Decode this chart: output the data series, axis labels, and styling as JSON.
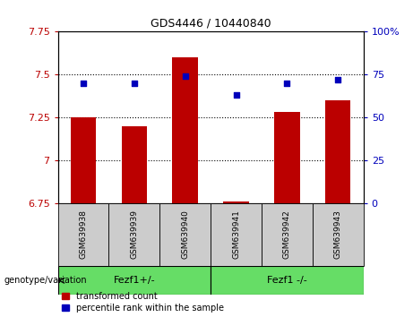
{
  "title": "GDS4446 / 10440840",
  "samples": [
    "GSM639938",
    "GSM639939",
    "GSM639940",
    "GSM639941",
    "GSM639942",
    "GSM639943"
  ],
  "bar_values": [
    7.25,
    7.2,
    7.6,
    6.76,
    7.28,
    7.35
  ],
  "dot_values": [
    70,
    70,
    74,
    63,
    70,
    72
  ],
  "ylim_left": [
    6.75,
    7.75
  ],
  "ylim_right": [
    0,
    100
  ],
  "yticks_left": [
    6.75,
    7.0,
    7.25,
    7.5,
    7.75
  ],
  "ytick_labels_left": [
    "6.75",
    "7",
    "7.25",
    "7.5",
    "7.75"
  ],
  "yticks_right": [
    0,
    25,
    50,
    75,
    100
  ],
  "ytick_labels_right": [
    "0",
    "25",
    "50",
    "75",
    "100%"
  ],
  "hlines": [
    7.0,
    7.25,
    7.5
  ],
  "bar_color": "#bb0000",
  "dot_color": "#0000bb",
  "group1_label": "Fezf1+/-",
  "group2_label": "Fezf1 -/-",
  "group1_indices": [
    0,
    1,
    2
  ],
  "group2_indices": [
    3,
    4,
    5
  ],
  "group_bg_color": "#66dd66",
  "sample_bg_color": "#cccccc",
  "legend_bar_label": "transformed count",
  "legend_dot_label": "percentile rank within the sample",
  "genotype_label": "genotype/variation"
}
